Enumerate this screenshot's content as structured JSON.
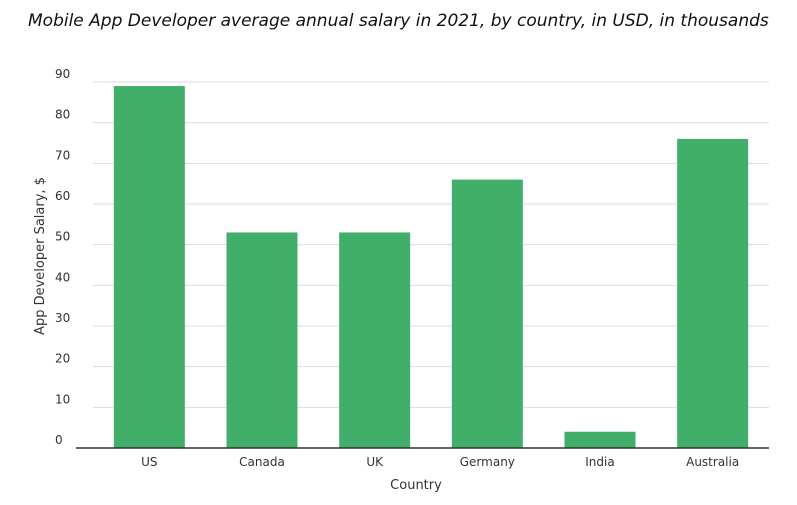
{
  "chart_data": {
    "type": "bar",
    "title": "Mobile App Developer average annual salary in 2021, by country, in USD, in thousands",
    "xlabel": "Country",
    "ylabel": "App Developer Salary, $",
    "categories": [
      "US",
      "Canada",
      "UK",
      "Germany",
      "India",
      "Australia"
    ],
    "values": [
      89,
      53,
      53,
      66,
      4,
      76
    ],
    "ylim": [
      0,
      90
    ],
    "yticks": [
      0,
      10,
      20,
      30,
      40,
      50,
      60,
      70,
      80,
      90
    ],
    "grid": true,
    "bar_color": "#41ae69",
    "grid_color": "#dddddd",
    "axis_color": "#333333"
  }
}
